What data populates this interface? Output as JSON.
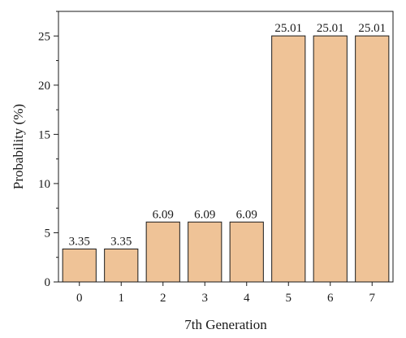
{
  "chart_data": {
    "type": "bar",
    "categories": [
      "0",
      "1",
      "2",
      "3",
      "4",
      "5",
      "6",
      "7"
    ],
    "values": [
      3.35,
      3.35,
      6.09,
      6.09,
      6.09,
      25.01,
      25.01,
      25.01
    ],
    "data_labels": [
      "3.35",
      "3.35",
      "6.09",
      "6.09",
      "6.09",
      "25.01",
      "25.01",
      "25.01"
    ],
    "xlabel": "7th Generation",
    "ylabel": "Probability (%)",
    "ylim": [
      0,
      27.5
    ],
    "yticks": [
      0,
      5,
      10,
      15,
      20,
      25
    ],
    "grid": false,
    "legend": "none",
    "bar_color": "#efc397",
    "bar_edge_color": "#1a1a1a"
  }
}
